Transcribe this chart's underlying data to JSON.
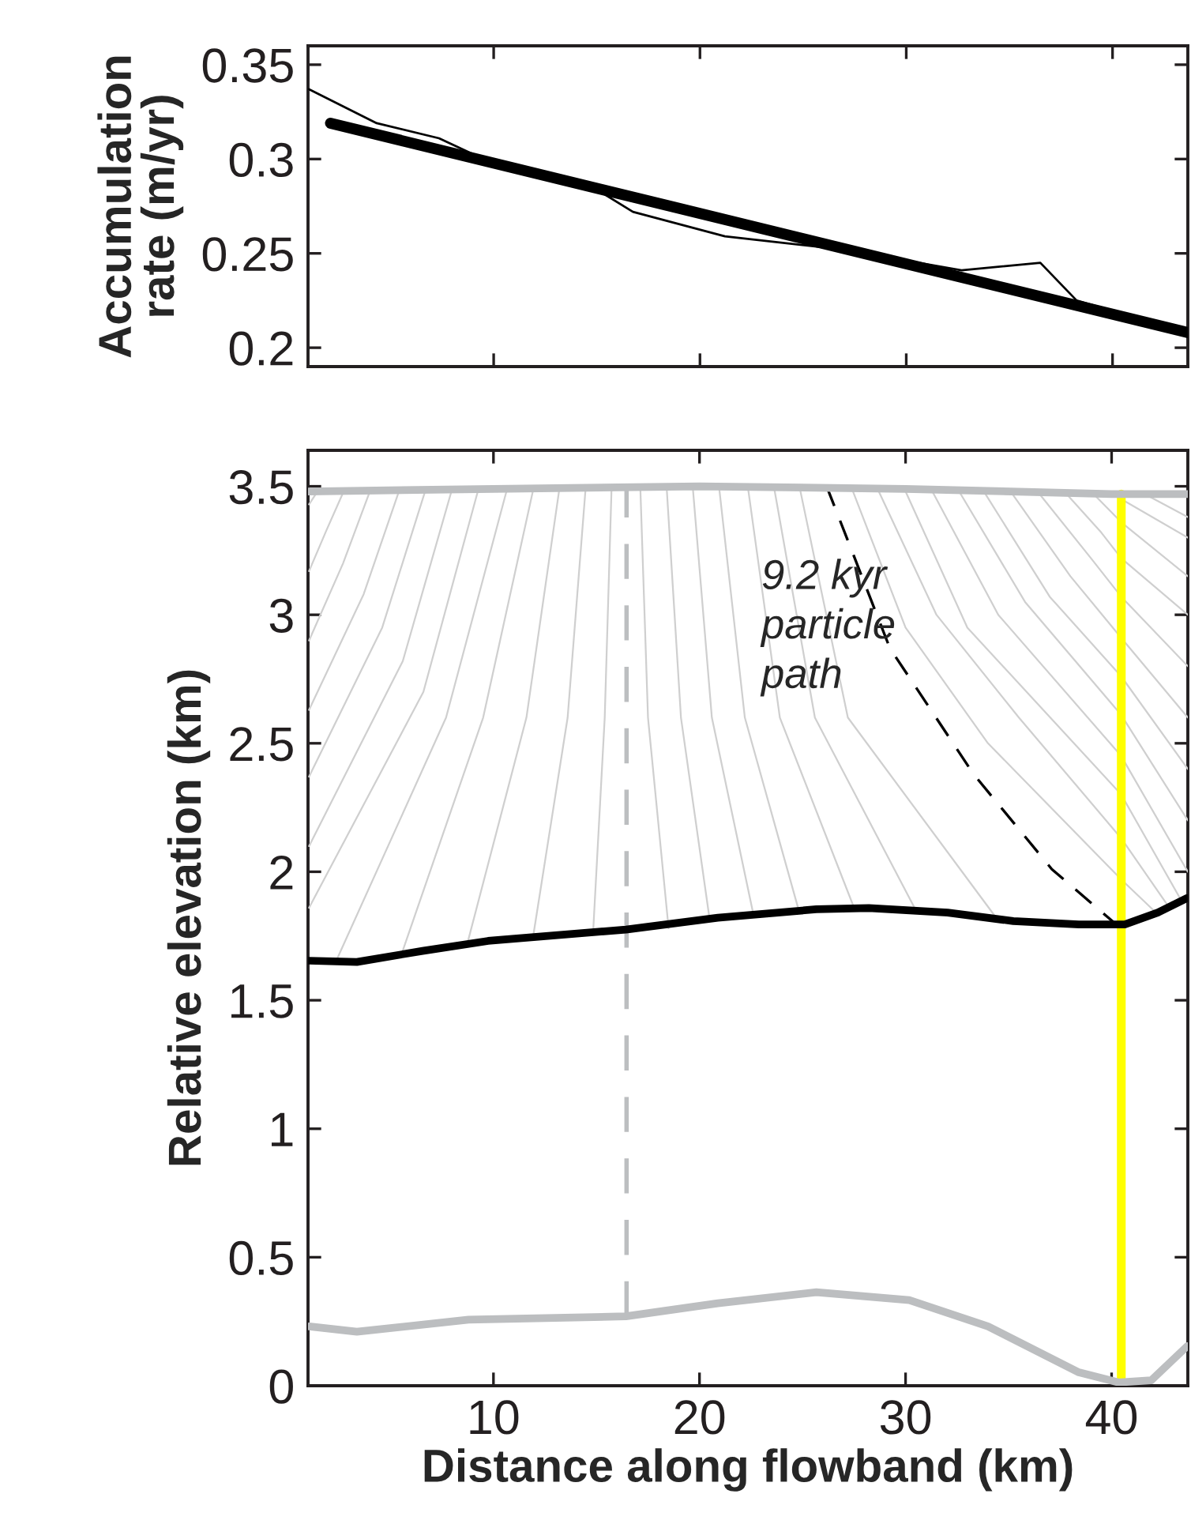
{
  "chart_data": [
    {
      "type": "line",
      "ylabel": "Accumulation\nrate (m/yr)",
      "xlim": [
        1,
        43.65
      ],
      "xticks": [
        10,
        20,
        30,
        40
      ],
      "ylim": [
        0.19,
        0.36
      ],
      "yticks": [
        0.2,
        0.25,
        0.3,
        0.35
      ],
      "tick_labels": "y",
      "series": [
        {
          "color": "#000000",
          "x": [
            1.05,
            4.33,
            7.35,
            9.11,
            14.68,
            16.75,
            21.21,
            26.94,
            32.68,
            36.5,
            38.26,
            43.65
          ],
          "values": [
            0.337,
            0.319,
            0.311,
            0.302,
            0.286,
            0.272,
            0.259,
            0.252,
            0.241,
            0.245,
            0.225,
            0.208
          ]
        },
        {
          "color": "#000000",
          "x": [
            2.09,
            43.65
          ],
          "values": [
            0.319,
            0.208
          ]
        }
      ]
    },
    {
      "type": "line",
      "xlabel": "Distance along flowband (km)",
      "ylabel": "Relative elevation (km)",
      "xlim": [
        1,
        43.7
      ],
      "xticks": [
        10,
        20,
        30,
        40
      ],
      "ylim": [
        0,
        3.64
      ],
      "yticks": [
        0,
        0.5,
        1,
        1.5,
        2,
        2.5,
        3,
        3.5
      ],
      "annotations": [
        {
          "text": "9.2 kyr\nparticle\npath",
          "x": 23.0,
          "y": 2.95
        }
      ],
      "series": [
        {
          "color": "#bcbec0",
          "x": [
            1,
            10,
            20,
            30,
            40,
            43.7
          ],
          "values": [
            3.48,
            3.49,
            3.5,
            3.49,
            3.47,
            3.47
          ]
        },
        {
          "color": "#000000",
          "x": [
            1.05,
            3.37,
            6.56,
            9.74,
            16.43,
            20.89,
            25.67,
            28.22,
            32.04,
            35.23,
            38.41,
            40.64,
            42.24,
            43.67
          ],
          "values": [
            1.654,
            1.649,
            1.692,
            1.731,
            1.775,
            1.821,
            1.854,
            1.859,
            1.841,
            1.808,
            1.795,
            1.795,
            1.841,
            1.898
          ]
        },
        {
          "color": "#bcbec0",
          "x": [
            1.05,
            3.37,
            8.79,
            16.43,
            20.89,
            25.67,
            30.18,
            34.0,
            38.41,
            40.33,
            41.92,
            43.67
          ],
          "values": [
            0.231,
            0.21,
            0.257,
            0.27,
            0.321,
            0.364,
            0.333,
            0.231,
            0.052,
            0.013,
            0.021,
            0.154
          ]
        },
        {
          "color": "#ffff00",
          "x": [
            40.47,
            40.47
          ],
          "values": [
            0.02,
            3.47
          ]
        },
        {
          "color": "#bcbec0",
          "line_style": "dashed",
          "x": [
            16.46,
            16.46
          ],
          "values": [
            0.27,
            3.5
          ]
        },
        {
          "color": "#000000",
          "line_style": "dashed",
          "x": [
            26.17,
            29.24,
            33.3,
            37.1,
            40.3
          ],
          "values": [
            3.5,
            2.87,
            2.38,
            2.01,
            1.79
          ]
        },
        {
          "color": "#cfcfcf",
          "x": [
            1.46,
            1.05
          ],
          "values": [
            3.48,
            3.43
          ]
        },
        {
          "color": "#cfcfcf",
          "x": [
            2.73,
            1.9,
            1.05
          ],
          "values": [
            3.48,
            3.33,
            3.17
          ]
        },
        {
          "color": "#cfcfcf",
          "x": [
            4.0,
            2.7,
            1.05
          ],
          "values": [
            3.48,
            3.2,
            2.9
          ]
        },
        {
          "color": "#cfcfcf",
          "x": [
            5.41,
            3.7,
            1.05
          ],
          "values": [
            3.48,
            3.08,
            2.63
          ]
        },
        {
          "color": "#cfcfcf",
          "x": [
            6.68,
            4.6,
            1.05
          ],
          "values": [
            3.48,
            2.95,
            2.37
          ]
        },
        {
          "color": "#cfcfcf",
          "x": [
            7.96,
            5.6,
            1.05
          ],
          "values": [
            3.48,
            2.82,
            2.1
          ]
        },
        {
          "color": "#cfcfcf",
          "x": [
            9.24,
            6.6,
            1.05
          ],
          "values": [
            3.48,
            2.7,
            1.86
          ]
        },
        {
          "color": "#cfcfcf",
          "x": [
            10.63,
            7.7,
            2.35
          ],
          "values": [
            3.48,
            2.6,
            1.65
          ]
        },
        {
          "color": "#cfcfcf",
          "x": [
            11.91,
            9.5,
            5.54
          ],
          "values": [
            3.48,
            2.6,
            1.68
          ]
        },
        {
          "color": "#cfcfcf",
          "x": [
            13.18,
            11.6,
            8.73
          ],
          "values": [
            3.48,
            2.6,
            1.72
          ]
        },
        {
          "color": "#cfcfcf",
          "x": [
            14.46,
            13.6,
            11.91
          ],
          "values": [
            3.48,
            2.6,
            1.74
          ]
        },
        {
          "color": "#cfcfcf",
          "x": [
            15.73,
            15.4,
            14.84
          ],
          "values": [
            3.49,
            2.6,
            1.77
          ]
        },
        {
          "color": "#cfcfcf",
          "x": [
            17.13,
            17.5,
            18.5
          ],
          "values": [
            3.49,
            2.6,
            1.78
          ]
        },
        {
          "color": "#cfcfcf",
          "x": [
            18.41,
            19.1,
            20.5
          ],
          "values": [
            3.49,
            2.6,
            1.81
          ]
        },
        {
          "color": "#cfcfcf",
          "x": [
            19.68,
            20.6,
            22.6
          ],
          "values": [
            3.49,
            2.6,
            1.84
          ]
        },
        {
          "color": "#cfcfcf",
          "x": [
            20.96,
            22.2,
            24.8
          ],
          "values": [
            3.49,
            2.6,
            1.855
          ]
        },
        {
          "color": "#cfcfcf",
          "x": [
            22.36,
            23.9,
            27.5
          ],
          "values": [
            3.49,
            2.6,
            1.86
          ]
        },
        {
          "color": "#cfcfcf",
          "x": [
            23.63,
            25.6,
            30.5
          ],
          "values": [
            3.49,
            2.6,
            1.85
          ]
        },
        {
          "color": "#cfcfcf",
          "x": [
            24.9,
            27.2,
            34.5
          ],
          "values": [
            3.48,
            2.6,
            1.81
          ]
        },
        {
          "color": "#cfcfcf",
          "x": [
            27.45,
            30.0,
            34.0,
            40.47,
            42.3
          ],
          "values": [
            3.48,
            2.95,
            2.5,
            1.97,
            1.83
          ]
        },
        {
          "color": "#cfcfcf",
          "x": [
            28.7,
            31.5,
            35.5,
            40.47,
            42.8
          ],
          "values": [
            3.48,
            3.0,
            2.6,
            2.13,
            1.86
          ]
        },
        {
          "color": "#cfcfcf",
          "x": [
            30.0,
            33.0,
            40.47,
            43.3
          ],
          "values": [
            3.48,
            2.95,
            2.3,
            1.9
          ]
        },
        {
          "color": "#cfcfcf",
          "x": [
            31.3,
            34.5,
            40.47,
            43.7
          ],
          "values": [
            3.48,
            3.0,
            2.45,
            2.0
          ]
        },
        {
          "color": "#cfcfcf",
          "x": [
            32.6,
            35.8,
            40.47,
            43.7
          ],
          "values": [
            3.48,
            3.05,
            2.61,
            2.2
          ]
        },
        {
          "color": "#cfcfcf",
          "x": [
            33.8,
            37.0,
            40.47,
            43.7
          ],
          "values": [
            3.48,
            3.07,
            2.76,
            2.4
          ]
        },
        {
          "color": "#cfcfcf",
          "x": [
            35.1,
            38.0,
            40.47,
            43.7
          ],
          "values": [
            3.48,
            3.15,
            2.91,
            2.6
          ]
        },
        {
          "color": "#cfcfcf",
          "x": [
            36.4,
            39.0,
            40.47,
            43.7
          ],
          "values": [
            3.48,
            3.22,
            3.07,
            2.8
          ]
        },
        {
          "color": "#cfcfcf",
          "x": [
            37.7,
            39.5,
            40.47,
            43.7
          ],
          "values": [
            3.48,
            3.32,
            3.22,
            3.0
          ]
        },
        {
          "color": "#cfcfcf",
          "x": [
            39.0,
            40.47,
            43.7
          ],
          "values": [
            3.48,
            3.36,
            3.15
          ]
        },
        {
          "color": "#cfcfcf",
          "x": [
            40.2,
            40.47,
            43.7
          ],
          "values": [
            3.47,
            3.45,
            3.3
          ]
        },
        {
          "color": "#cfcfcf",
          "x": [
            41.6,
            43.7
          ],
          "values": [
            3.47,
            3.38
          ]
        }
      ]
    }
  ]
}
